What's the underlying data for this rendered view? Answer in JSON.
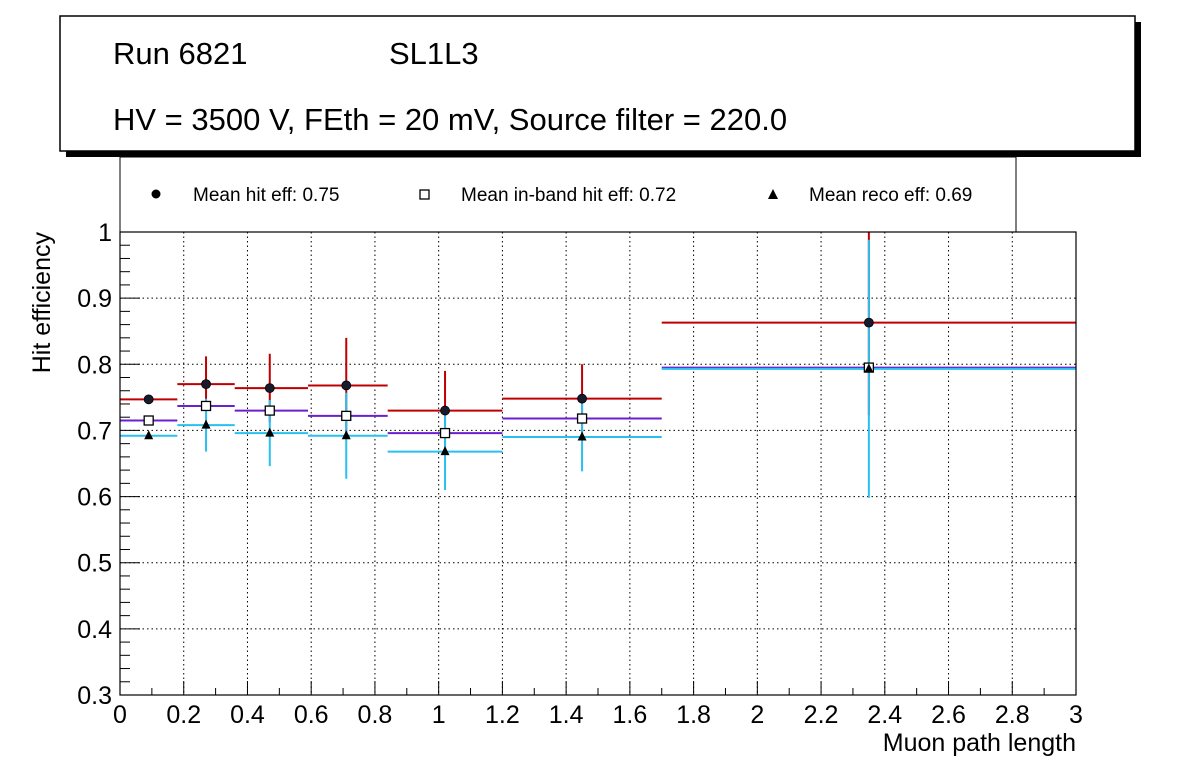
{
  "header": {
    "run_label": "Run 6821",
    "layer_label": "SL1L3",
    "settings_line": "HV = 3500 V, FEth = 20 mV, Source filter = 220.0"
  },
  "legend": {
    "hit_label": "Mean hit  eff: 0.75",
    "inband_label": "Mean in-band hit eff: 0.72",
    "reco_label": "Mean reco eff: 0.69"
  },
  "colors": {
    "hit": "#c00000",
    "inband": "#6a1fd0",
    "reco": "#29c0ef",
    "grid": "#000000"
  },
  "chart_data": {
    "type": "scatter",
    "title": "",
    "xlabel": "Muon path length",
    "ylabel": "Hit efficiency",
    "xlim": [
      0,
      3
    ],
    "ylim": [
      0.3,
      1.0
    ],
    "x_ticks": [
      0,
      0.2,
      0.4,
      0.6,
      0.8,
      1,
      1.2,
      1.4,
      1.6,
      1.8,
      2,
      2.2,
      2.4,
      2.6,
      2.8,
      3
    ],
    "y_ticks": [
      0.3,
      0.4,
      0.5,
      0.6,
      0.7,
      0.8,
      0.9,
      1.0
    ],
    "grid": true,
    "bins": [
      {
        "x": 0.09,
        "xlo": 0.0,
        "xhi": 0.18
      },
      {
        "x": 0.27,
        "xlo": 0.18,
        "xhi": 0.36
      },
      {
        "x": 0.47,
        "xlo": 0.36,
        "xhi": 0.59
      },
      {
        "x": 0.71,
        "xlo": 0.59,
        "xhi": 0.84
      },
      {
        "x": 1.02,
        "xlo": 0.84,
        "xhi": 1.2
      },
      {
        "x": 1.45,
        "xlo": 1.2,
        "xhi": 1.7
      },
      {
        "x": 2.35,
        "xlo": 1.7,
        "xhi": 3.0
      }
    ],
    "series": [
      {
        "name": "Mean hit  eff: 0.75",
        "marker": "circle",
        "values": [
          0.747,
          0.77,
          0.764,
          0.768,
          0.73,
          0.748,
          0.863
        ],
        "err": [
          0.0,
          0.042,
          0.052,
          0.072,
          0.06,
          0.052,
          0.14
        ]
      },
      {
        "name": "Mean in-band hit eff: 0.72",
        "marker": "open-square",
        "values": [
          0.715,
          0.737,
          0.73,
          0.722,
          0.696,
          0.718,
          0.795
        ],
        "err": [
          0.0,
          0.0,
          0.0,
          0.0,
          0.0,
          0.0,
          0.0
        ]
      },
      {
        "name": "Mean reco eff: 0.69",
        "marker": "triangle",
        "values": [
          0.692,
          0.708,
          0.696,
          0.692,
          0.668,
          0.69,
          0.793
        ],
        "err": [
          0.0,
          0.04,
          0.05,
          0.065,
          0.058,
          0.052,
          0.195
        ]
      }
    ]
  }
}
